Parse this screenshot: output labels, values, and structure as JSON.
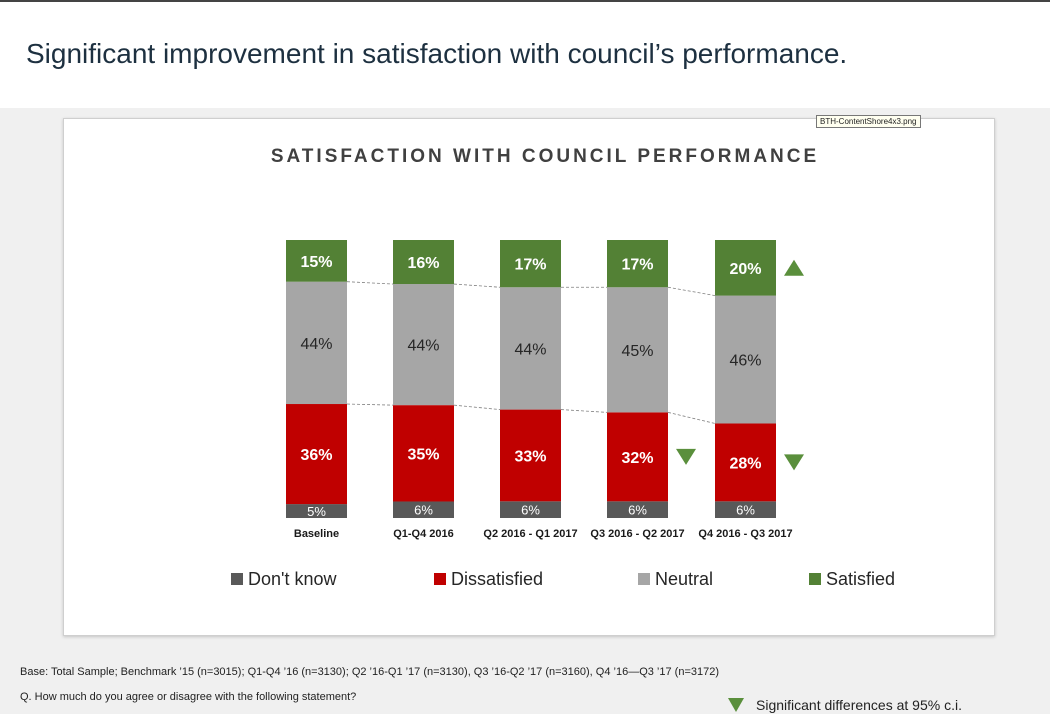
{
  "headline": "Significant improvement in satisfaction with council’s performance.",
  "file_tag": "BTH-ContentShore4x3.png",
  "footnote_base": "Base: Total Sample; Benchmark ’15 (n=3015); Q1-Q4 ’16 (n=3130); Q2 ’16-Q1 ’17 (n=3130), Q3 ’16-Q2 ’17 (n=3160), Q4 ’16—Q3 ’17 (n=3172)",
  "footnote_question": "Q. How much do you agree or disagree with the following statement?",
  "sig_note": "Significant differences at 95% c.i.",
  "colors": {
    "dont_know": "#595959",
    "dissatisfied": "#c00000",
    "neutral": "#a6a6a6",
    "satisfied": "#538135",
    "marker": "#5a8f3c"
  },
  "chart_data": {
    "type": "bar",
    "stacked": true,
    "percent": true,
    "title": "SATISFACTION WITH COUNCIL PERFORMANCE",
    "categories": [
      "Baseline",
      "Q1-Q4 2016",
      "Q2 2016 - Q1 2017",
      "Q3 2016 - Q2 2017",
      "Q4 2016 - Q3 2017"
    ],
    "series": [
      {
        "name": "Don't know",
        "values": [
          5,
          6,
          6,
          6,
          6
        ],
        "labels": [
          "5%",
          "6%",
          "6%",
          "6%",
          "6%"
        ]
      },
      {
        "name": "Dissatisfied",
        "values": [
          36,
          35,
          33,
          32,
          28
        ],
        "labels": [
          "36%",
          "35%",
          "33%",
          "32%",
          "28%"
        ]
      },
      {
        "name": "Neutral",
        "values": [
          44,
          44,
          44,
          45,
          46
        ],
        "labels": [
          "44%",
          "44%",
          "44%",
          "45%",
          "46%"
        ]
      },
      {
        "name": "Satisfied",
        "values": [
          15,
          16,
          17,
          17,
          20
        ],
        "labels": [
          "15%",
          "16%",
          "17%",
          "17%",
          "20%"
        ]
      }
    ],
    "significance_markers": [
      {
        "category": "Q3 2016 - Q2 2017",
        "series": "Dissatisfied",
        "direction": "down"
      },
      {
        "category": "Q4 2016 - Q3 2017",
        "series": "Dissatisfied",
        "direction": "down"
      },
      {
        "category": "Q4 2016 - Q3 2017",
        "series": "Satisfied",
        "direction": "up"
      }
    ],
    "legend": [
      "Don't know",
      "Dissatisfied",
      "Neutral",
      "Satisfied"
    ],
    "legend_position": "bottom",
    "grid": false
  }
}
